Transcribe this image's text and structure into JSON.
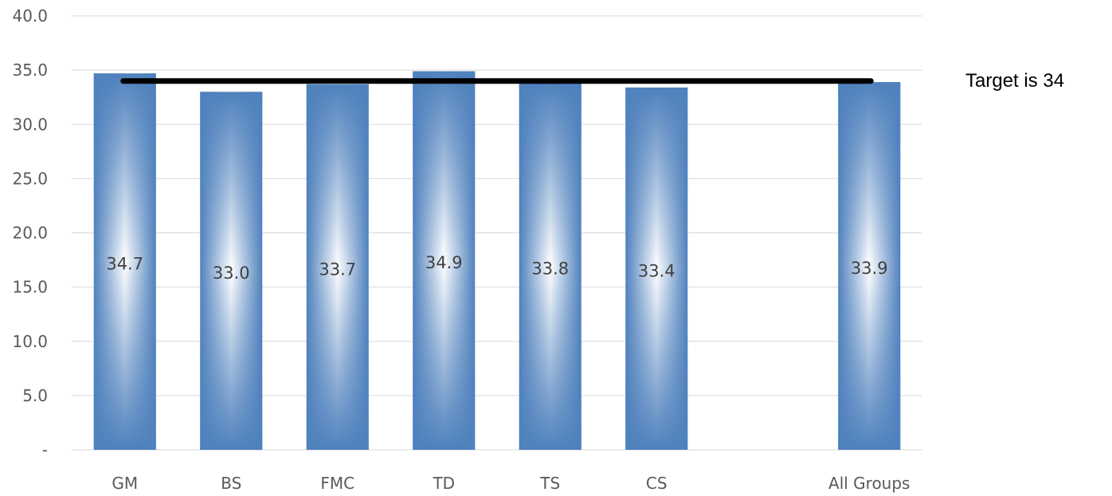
{
  "chart_data": {
    "type": "bar",
    "categories": [
      "GM",
      "BS",
      "FMC",
      "TD",
      "TS",
      "CS",
      "",
      "All Groups"
    ],
    "values": [
      34.7,
      33.0,
      33.7,
      34.9,
      33.8,
      33.4,
      null,
      33.9
    ],
    "data_labels": [
      "34.7",
      "33.0",
      "33.7",
      "34.9",
      "33.8",
      "33.4",
      "",
      "33.9"
    ],
    "ylim": [
      0,
      40
    ],
    "yticks": [
      0,
      5,
      10,
      15,
      20,
      25,
      30,
      35,
      40
    ],
    "ytick_labels": [
      "-",
      "5.0",
      "10.0",
      "15.0",
      "20.0",
      "25.0",
      "30.0",
      "35.0",
      "40.0"
    ],
    "grid": true,
    "target": {
      "value": 34,
      "label": "Target is 34"
    },
    "title": "",
    "xlabel": "",
    "ylabel": "",
    "colors": {
      "bar_edge": "#4f81bd",
      "bar_center": "#ffffff",
      "target_line": "#000000"
    }
  }
}
